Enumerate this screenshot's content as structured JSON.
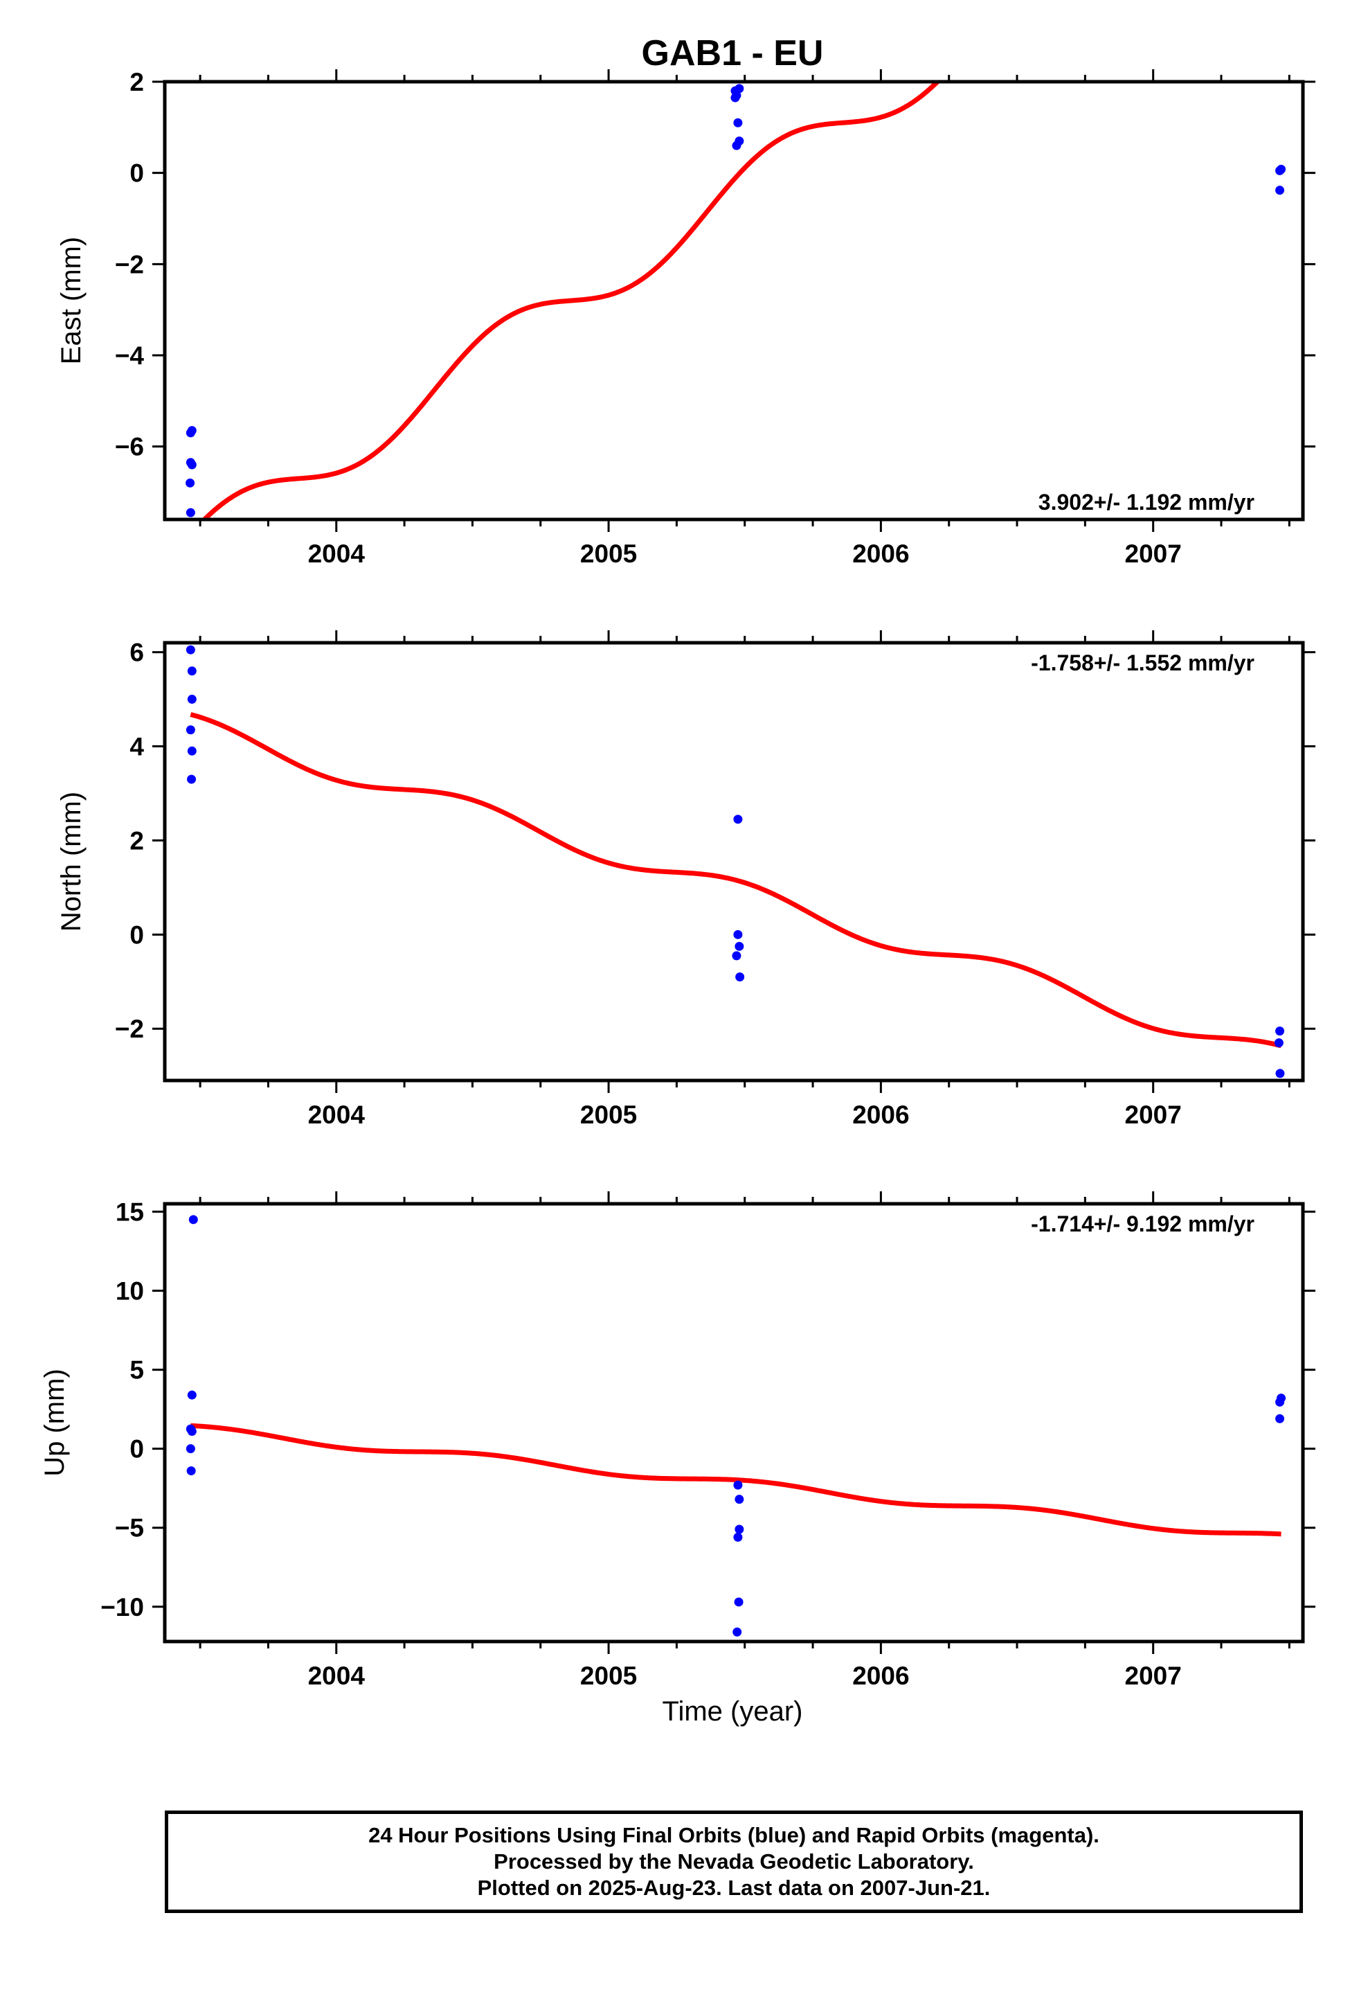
{
  "title": "GAB1 - EU",
  "colors": {
    "fit": "#ff0000",
    "points": "#0000ff",
    "frame": "#000000"
  },
  "xlabel": "Time (year)",
  "footer": {
    "line1": "24 Hour Positions Using Final Orbits (blue) and Rapid Orbits (magenta).",
    "line2": "Processed by the Nevada Geodetic Laboratory.",
    "line3": "Plotted on 2025-Aug-23. Last data on 2007-Jun-21."
  },
  "chart_data": [
    {
      "type": "scatter",
      "title": "GAB1 - EU",
      "ylabel": "East (mm)",
      "xlabel": "",
      "rate_label": "3.902+/- 1.192 mm/yr",
      "rate_position": "bottom-right",
      "xlim": [
        2003.37,
        2007.55
      ],
      "ylim": [
        -7.6,
        2.0
      ],
      "xticks": [
        2004,
        2005,
        2006,
        2007
      ],
      "yticks": [
        2,
        0,
        -2,
        -4,
        -6
      ],
      "ytick_labels": [
        "2",
        "0",
        "−2",
        "−4",
        "−6"
      ],
      "points": [
        [
          2003.465,
          -5.7
        ],
        [
          2003.47,
          -5.65
        ],
        [
          2003.465,
          -6.35
        ],
        [
          2003.47,
          -6.4
        ],
        [
          2003.463,
          -6.8
        ],
        [
          2003.465,
          -7.45
        ],
        [
          2005.465,
          1.8
        ],
        [
          2005.47,
          1.7
        ],
        [
          2005.465,
          1.65
        ],
        [
          2005.48,
          1.85
        ],
        [
          2005.475,
          1.1
        ],
        [
          2005.48,
          0.7
        ],
        [
          2005.47,
          0.6
        ],
        [
          2007.465,
          0.05
        ],
        [
          2007.47,
          0.08
        ],
        [
          2007.465,
          -0.38
        ]
      ],
      "fit": {
        "trend": 3.902,
        "ref_year": 2003.465,
        "ref_value": -8.25,
        "amplitude": 0.55,
        "phase": 0.65
      }
    },
    {
      "type": "scatter",
      "ylabel": "North (mm)",
      "xlabel": "",
      "rate_label": "-1.758+/- 1.552 mm/yr",
      "rate_position": "top-right",
      "xlim": [
        2003.37,
        2007.55
      ],
      "ylim": [
        -3.1,
        6.2
      ],
      "xticks": [
        2004,
        2005,
        2006,
        2007
      ],
      "yticks": [
        6,
        4,
        2,
        0,
        -2
      ],
      "ytick_labels": [
        "6",
        "4",
        "2",
        "0",
        "−2"
      ],
      "points": [
        [
          2003.465,
          6.05
        ],
        [
          2003.47,
          5.6
        ],
        [
          2003.47,
          5.0
        ],
        [
          2003.465,
          4.35
        ],
        [
          2003.47,
          3.9
        ],
        [
          2003.468,
          3.3
        ],
        [
          2005.475,
          2.45
        ],
        [
          2005.475,
          0.0
        ],
        [
          2005.48,
          -0.25
        ],
        [
          2005.47,
          -0.45
        ],
        [
          2005.482,
          -0.9
        ],
        [
          2007.465,
          -2.05
        ],
        [
          2007.462,
          -2.3
        ],
        [
          2007.466,
          -2.95
        ]
      ],
      "fit": {
        "trend": -1.758,
        "ref_year": 2003.465,
        "ref_value": 4.45,
        "amplitude": 0.23,
        "phase": 1.4
      }
    },
    {
      "type": "scatter",
      "ylabel": "Up (mm)",
      "xlabel": "Time (year)",
      "rate_label": "-1.714+/- 9.192 mm/yr",
      "rate_position": "top-right",
      "xlim": [
        2003.37,
        2007.55
      ],
      "ylim": [
        -12.2,
        15.5
      ],
      "xticks": [
        2004,
        2005,
        2006,
        2007
      ],
      "yticks": [
        15,
        10,
        5,
        0,
        -5,
        -10
      ],
      "ytick_labels": [
        "15",
        "10",
        "5",
        "0",
        "−5",
        "−10"
      ],
      "points": [
        [
          2003.475,
          14.5
        ],
        [
          2003.47,
          3.4
        ],
        [
          2003.465,
          1.25
        ],
        [
          2003.47,
          1.1
        ],
        [
          2003.465,
          0.0
        ],
        [
          2003.467,
          -1.4
        ],
        [
          2005.475,
          -2.3
        ],
        [
          2005.48,
          -3.2
        ],
        [
          2005.48,
          -5.1
        ],
        [
          2005.475,
          -5.6
        ],
        [
          2005.478,
          -9.7
        ],
        [
          2005.472,
          -11.6
        ],
        [
          2007.47,
          3.2
        ],
        [
          2007.465,
          2.95
        ],
        [
          2007.465,
          1.9
        ]
      ],
      "fit": {
        "trend": -1.714,
        "ref_year": 2003.465,
        "ref_value": 1.25,
        "amplitude": 0.25,
        "phase": 1.0
      }
    }
  ]
}
